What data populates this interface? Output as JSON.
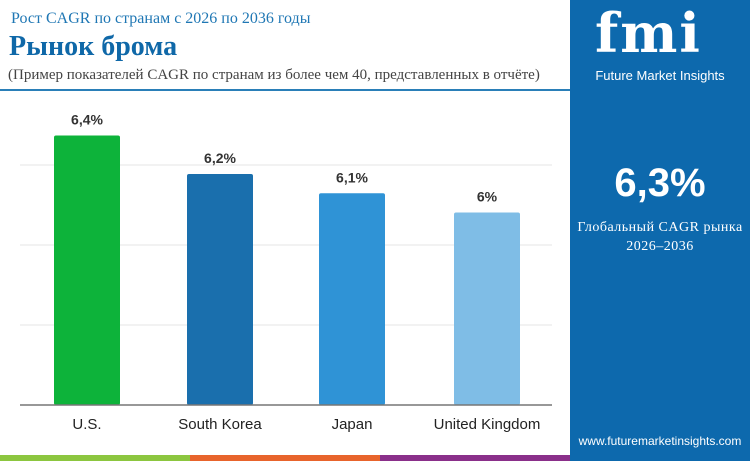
{
  "header": {
    "subtitle": "Рост CAGR по странам с 2026 по 2036 годы",
    "title": "Рынок брома",
    "note": "(Пример показателей CAGR по странам из более чем 40, представленных в отчёте)"
  },
  "sidebar": {
    "logo_text": "fmi",
    "brand": "Future Market Insights",
    "global_value": "6,3%",
    "global_label_1": "Глобальный CAGR рынка",
    "global_label_2": "2026–2036",
    "url": "www.futuremarketinsights.com",
    "bg_color": "#0d69ad"
  },
  "chart_data": {
    "type": "bar",
    "categories": [
      "U.S.",
      "South Korea",
      "Japan",
      "United Kingdom"
    ],
    "values": [
      6.4,
      6.2,
      6.1,
      6.0
    ],
    "labels": [
      "6,4%",
      "6,2%",
      "6,1%",
      "6%"
    ],
    "colors": [
      "#0db33a",
      "#1a6fad",
      "#2f93d6",
      "#7fbde6"
    ],
    "ylim": [
      5.0,
      6.6
    ],
    "grid": true,
    "xlabel": "",
    "ylabel": ""
  }
}
